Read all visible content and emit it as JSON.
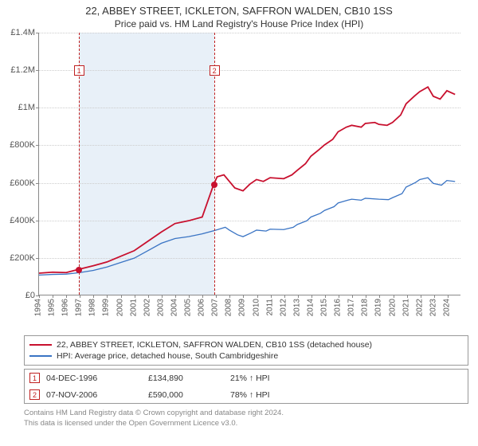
{
  "title": "22, ABBEY STREET, ICKLETON, SAFFRON WALDEN, CB10 1SS",
  "subtitle": "Price paid vs. HM Land Registry's House Price Index (HPI)",
  "chart": {
    "type": "line",
    "x_min_year": 1994,
    "x_max_year": 2025,
    "x_years": [
      1994,
      1995,
      1996,
      1997,
      1998,
      1999,
      2000,
      2001,
      2002,
      2003,
      2004,
      2005,
      2006,
      2007,
      2008,
      2009,
      2010,
      2011,
      2012,
      2013,
      2014,
      2015,
      2016,
      2017,
      2018,
      2019,
      2020,
      2021,
      2022,
      2023,
      2024
    ],
    "y_min": 0,
    "y_max": 1400000,
    "y_ticks": [
      0,
      200000,
      400000,
      600000,
      800000,
      1000000,
      1200000,
      1400000
    ],
    "y_tick_labels": [
      "£0",
      "£200K",
      "£400K",
      "£600K",
      "£800K",
      "£1M",
      "£1.2M",
      "£1.4M"
    ],
    "grid_color": "#cccccc",
    "axis_color": "#888888",
    "band_color": "#e8f0f8",
    "band_start_year": 1996.9,
    "band_end_year": 2006.85,
    "series": [
      {
        "key": "price_paid",
        "label": "22, ABBEY STREET, ICKLETON, SAFFRON WALDEN, CB10 1SS (detached house)",
        "color": "#c8102e",
        "width": 1.8,
        "data": [
          [
            1994,
            115000
          ],
          [
            1995,
            120000
          ],
          [
            1996,
            118000
          ],
          [
            1996.9,
            134890
          ],
          [
            1998,
            155000
          ],
          [
            1999,
            175000
          ],
          [
            2000,
            205000
          ],
          [
            2001,
            235000
          ],
          [
            2002,
            285000
          ],
          [
            2003,
            335000
          ],
          [
            2004,
            380000
          ],
          [
            2005,
            395000
          ],
          [
            2006,
            415000
          ],
          [
            2006.85,
            590000
          ],
          [
            2007.1,
            630000
          ],
          [
            2007.6,
            640000
          ],
          [
            2008,
            605000
          ],
          [
            2008.4,
            570000
          ],
          [
            2009,
            555000
          ],
          [
            2009.5,
            590000
          ],
          [
            2010,
            615000
          ],
          [
            2010.5,
            605000
          ],
          [
            2011,
            625000
          ],
          [
            2012,
            620000
          ],
          [
            2012.6,
            640000
          ],
          [
            2013,
            665000
          ],
          [
            2013.6,
            700000
          ],
          [
            2014,
            740000
          ],
          [
            2014.6,
            775000
          ],
          [
            2015,
            800000
          ],
          [
            2015.6,
            830000
          ],
          [
            2016,
            870000
          ],
          [
            2016.6,
            895000
          ],
          [
            2017,
            905000
          ],
          [
            2017.7,
            895000
          ],
          [
            2018,
            915000
          ],
          [
            2018.7,
            920000
          ],
          [
            2019,
            910000
          ],
          [
            2019.6,
            905000
          ],
          [
            2020,
            920000
          ],
          [
            2020.6,
            960000
          ],
          [
            2021,
            1020000
          ],
          [
            2021.6,
            1060000
          ],
          [
            2022,
            1085000
          ],
          [
            2022.6,
            1110000
          ],
          [
            2023,
            1060000
          ],
          [
            2023.5,
            1045000
          ],
          [
            2024,
            1090000
          ],
          [
            2024.6,
            1070000
          ]
        ]
      },
      {
        "key": "hpi",
        "label": "HPI: Average price, detached house, South Cambridgeshire",
        "color": "#3a74c4",
        "width": 1.3,
        "data": [
          [
            1994,
            105000
          ],
          [
            1995,
            108000
          ],
          [
            1996,
            110000
          ],
          [
            1997,
            118000
          ],
          [
            1998,
            130000
          ],
          [
            1999,
            148000
          ],
          [
            2000,
            172000
          ],
          [
            2001,
            195000
          ],
          [
            2002,
            235000
          ],
          [
            2003,
            275000
          ],
          [
            2004,
            300000
          ],
          [
            2005,
            310000
          ],
          [
            2006,
            325000
          ],
          [
            2007,
            345000
          ],
          [
            2007.7,
            360000
          ],
          [
            2008,
            345000
          ],
          [
            2008.6,
            320000
          ],
          [
            2009,
            310000
          ],
          [
            2009.6,
            330000
          ],
          [
            2010,
            345000
          ],
          [
            2010.7,
            340000
          ],
          [
            2011,
            350000
          ],
          [
            2012,
            348000
          ],
          [
            2012.7,
            360000
          ],
          [
            2013,
            375000
          ],
          [
            2013.7,
            395000
          ],
          [
            2014,
            415000
          ],
          [
            2014.7,
            435000
          ],
          [
            2015,
            450000
          ],
          [
            2015.7,
            470000
          ],
          [
            2016,
            490000
          ],
          [
            2016.7,
            505000
          ],
          [
            2017,
            510000
          ],
          [
            2017.7,
            505000
          ],
          [
            2018,
            515000
          ],
          [
            2019,
            510000
          ],
          [
            2019.7,
            508000
          ],
          [
            2020,
            518000
          ],
          [
            2020.7,
            540000
          ],
          [
            2021,
            575000
          ],
          [
            2021.7,
            600000
          ],
          [
            2022,
            615000
          ],
          [
            2022.6,
            625000
          ],
          [
            2023,
            595000
          ],
          [
            2023.6,
            585000
          ],
          [
            2024,
            610000
          ],
          [
            2024.6,
            605000
          ]
        ]
      }
    ],
    "sale_markers": [
      {
        "n": "1",
        "year": 1996.9,
        "price": 134890,
        "box_y": 1225000
      },
      {
        "n": "2",
        "year": 2006.85,
        "price": 590000,
        "box_y": 1225000
      }
    ],
    "sale_dot_color": "#c8102e"
  },
  "sales": [
    {
      "n": "1",
      "date": "04-DEC-1996",
      "price": "£134,890",
      "ratio": "21% ↑ HPI"
    },
    {
      "n": "2",
      "date": "07-NOV-2006",
      "price": "£590,000",
      "ratio": "78% ↑ HPI"
    }
  ],
  "footer_lines": [
    "Contains HM Land Registry data © Crown copyright and database right 2024.",
    "This data is licensed under the Open Government Licence v3.0."
  ],
  "text_colors": {
    "title": "#333333",
    "axis": "#555555",
    "footer": "#888888",
    "marker": "#c02020"
  }
}
